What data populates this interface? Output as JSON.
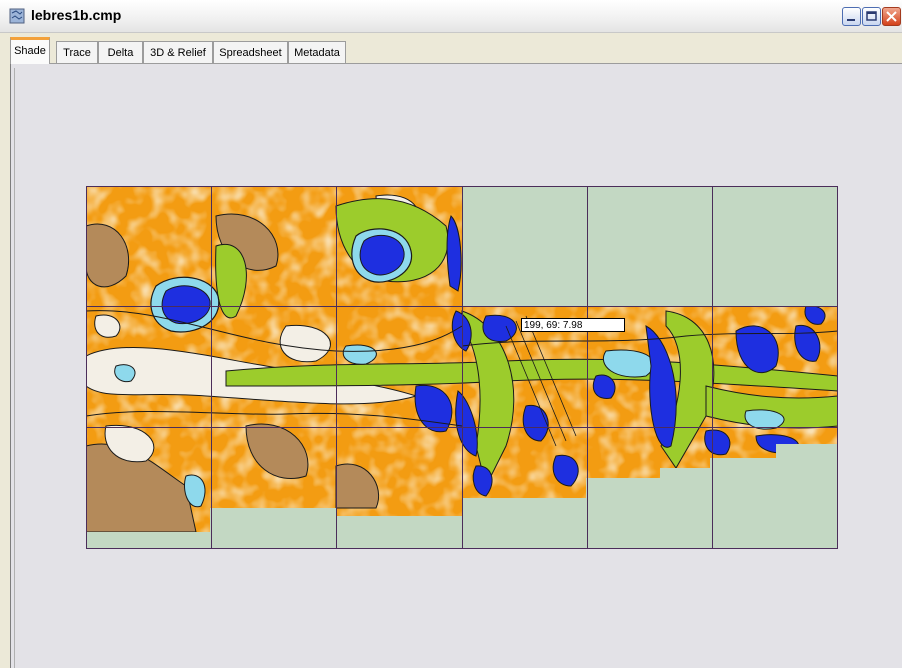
{
  "window": {
    "title": "lebres1b.cmp"
  },
  "tabs": [
    {
      "label": "Shade",
      "active": true
    },
    {
      "label": "Trace",
      "active": false
    },
    {
      "label": "Delta",
      "active": false
    },
    {
      "label": "3D & Relief",
      "active": false
    },
    {
      "label": "Spreadsheet",
      "active": false
    },
    {
      "label": "Metadata",
      "active": false
    }
  ],
  "map": {
    "readout": "199, 69: 7.98",
    "colors": {
      "background": "#c3d8c3",
      "grid": "#4b2d5a",
      "orange": "#f39c12",
      "light_orange": "#f6c86a",
      "brown": "#b48a5a",
      "white": "#f3efe6",
      "green": "#9ccc2c",
      "light_blue": "#8ed9ec",
      "blue": "#1e2fe0"
    }
  }
}
